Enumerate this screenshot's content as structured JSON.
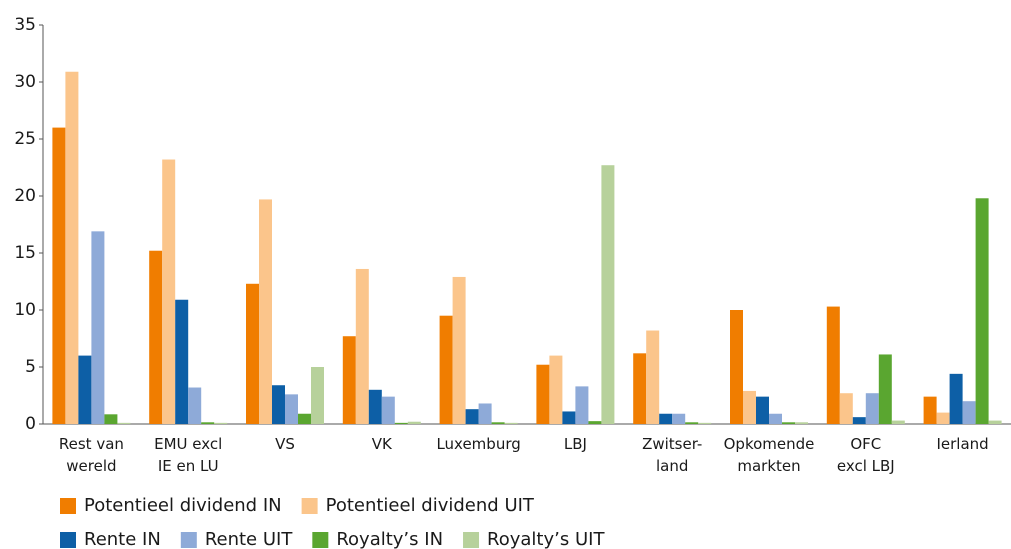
{
  "chart_data": {
    "type": "bar",
    "categories": [
      [
        "Rest van",
        "wereld"
      ],
      [
        "EMU excl",
        "IE en LU"
      ],
      [
        "VS"
      ],
      [
        "VK"
      ],
      [
        "Luxemburg"
      ],
      [
        "LBJ"
      ],
      [
        "Zwitser-",
        "land"
      ],
      [
        "Opkomende",
        "markten"
      ],
      [
        "OFC",
        "excl LBJ"
      ],
      [
        "Ierland"
      ]
    ],
    "series": [
      {
        "name": "Potentieel dividend IN",
        "color": "#f07d00",
        "values": [
          26,
          15.2,
          12.3,
          7.7,
          9.5,
          5.2,
          6.2,
          10.0,
          10.3,
          2.4
        ]
      },
      {
        "name": "Potentieel dividend UIT",
        "color": "#fbc58b",
        "values": [
          30.9,
          23.2,
          19.7,
          13.6,
          12.9,
          6.0,
          8.2,
          2.9,
          2.7,
          1.0
        ]
      },
      {
        "name": "Rente IN",
        "color": "#0d5fa6",
        "values": [
          6.0,
          10.9,
          3.4,
          3.0,
          1.3,
          1.1,
          0.9,
          2.4,
          0.6,
          4.4
        ]
      },
      {
        "name": "Rente UIT",
        "color": "#8eaad8",
        "values": [
          16.9,
          3.2,
          2.6,
          2.4,
          1.8,
          3.3,
          0.9,
          0.9,
          2.7,
          2.0
        ]
      },
      {
        "name": "Royalty’s IN",
        "color": "#5aa630",
        "values": [
          0.85,
          0.15,
          0.9,
          0.1,
          0.15,
          0.25,
          0.15,
          0.15,
          6.1,
          19.8
        ]
      },
      {
        "name": "Royalty’s UIT",
        "color": "#b7d19b",
        "values": [
          0.1,
          0.1,
          5.0,
          0.2,
          0.1,
          22.7,
          0.1,
          0.15,
          0.3,
          0.3
        ]
      }
    ],
    "ylim": [
      0,
      35
    ],
    "yticks": [
      0,
      5,
      10,
      15,
      20,
      25,
      30,
      35
    ],
    "grid": false
  }
}
